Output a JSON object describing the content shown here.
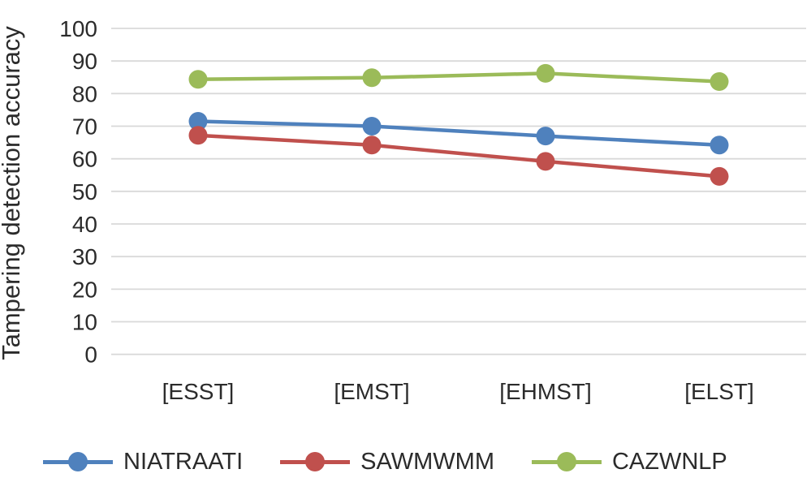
{
  "chart_data": {
    "type": "line",
    "categories": [
      "[ESST]",
      "[EMST]",
      "[EHMST]",
      "[ELST]"
    ],
    "series": [
      {
        "name": "NIATRAATI",
        "color": "#4F81BD",
        "values": [
          71.5,
          70.0,
          67.0,
          64.2
        ]
      },
      {
        "name": "SAWMWMM",
        "color": "#C0504D",
        "values": [
          67.2,
          64.2,
          59.2,
          54.6
        ]
      },
      {
        "name": "CAZWNLP",
        "color": "#9BBB59",
        "values": [
          84.4,
          84.9,
          86.2,
          83.7
        ]
      }
    ],
    "ylabel": "Tampering detection accuracy",
    "ylim": [
      0,
      100
    ],
    "yticks": [
      0,
      10,
      20,
      30,
      40,
      50,
      60,
      70,
      80,
      90,
      100
    ],
    "grid": "horizontal-only",
    "gridline_color": "#d9d9d9",
    "legend_position": "bottom",
    "marker": "circle"
  }
}
